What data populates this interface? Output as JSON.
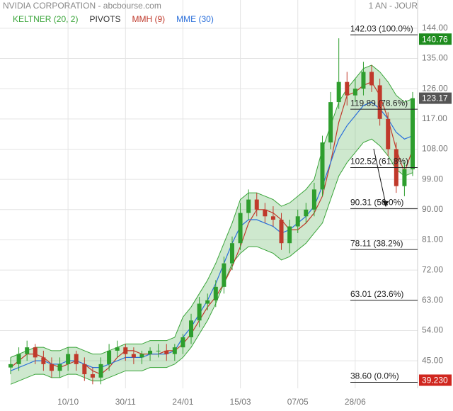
{
  "chart_data": {
    "type": "candlestick",
    "title": "NVIDIA CORPORATION - abcbourse.com",
    "period": "1 AN - JOUR",
    "categories": [
      null,
      null,
      null,
      null,
      null,
      null,
      null,
      "10/10",
      null,
      null,
      null,
      null,
      null,
      null,
      "30/11",
      null,
      null,
      null,
      null,
      null,
      null,
      "24/01",
      null,
      null,
      null,
      null,
      null,
      null,
      "15/03",
      null,
      null,
      null,
      null,
      null,
      null,
      "07/05",
      null,
      null,
      null,
      null,
      null,
      null,
      "28/06",
      null,
      null,
      null,
      null,
      null,
      null,
      null
    ],
    "open": [
      43,
      44,
      47,
      49,
      46,
      44,
      42,
      44,
      47,
      44,
      41,
      40,
      44,
      48,
      49,
      47,
      46,
      47,
      48,
      48,
      47,
      49,
      52,
      57,
      62,
      63,
      67,
      74,
      80,
      89,
      93,
      90,
      88,
      87,
      80,
      85,
      88,
      90,
      96,
      110,
      122,
      128,
      124,
      126,
      131,
      127,
      117,
      108,
      97,
      102
    ],
    "high": [
      46,
      49,
      51,
      50,
      48,
      46,
      46,
      49,
      48,
      46,
      43,
      46,
      50,
      51,
      50,
      49,
      48,
      49,
      50,
      50,
      50,
      53,
      59,
      64,
      65,
      69,
      76,
      82,
      92,
      96,
      95,
      92,
      91,
      89,
      87,
      90,
      92,
      98,
      112,
      125,
      141,
      131,
      129,
      134,
      133,
      129,
      119,
      110,
      104,
      125
    ],
    "low": [
      41,
      42,
      45,
      44,
      42,
      40,
      40,
      42,
      42,
      39,
      38,
      38,
      42,
      46,
      45,
      44,
      44,
      45,
      46,
      45,
      45,
      47,
      50,
      55,
      60,
      61,
      65,
      72,
      78,
      87,
      88,
      86,
      85,
      78,
      77,
      83,
      86,
      88,
      94,
      108,
      120,
      121,
      122,
      124,
      125,
      115,
      106,
      95,
      94,
      100
    ],
    "close": [
      44,
      47,
      49,
      46,
      44,
      42,
      44,
      47,
      44,
      41,
      40,
      44,
      48,
      49,
      47,
      46,
      47,
      48,
      48,
      47,
      49,
      52,
      57,
      62,
      63,
      67,
      74,
      80,
      89,
      93,
      90,
      88,
      87,
      80,
      85,
      88,
      90,
      96,
      110,
      122,
      128,
      124,
      126,
      131,
      127,
      117,
      108,
      97,
      102,
      123.17
    ],
    "up_color": "#2e9e2e",
    "down_color": "#c0392b",
    "indicators": [
      {
        "name": "KELTNER (20, 2)",
        "color": "#3aa53a",
        "upper": [
          46,
          47,
          48,
          49,
          49,
          48,
          48,
          49,
          49,
          48,
          47,
          47,
          48,
          49,
          50,
          50,
          50,
          51,
          51,
          51,
          52,
          58,
          61,
          65,
          69,
          74,
          80,
          86,
          93,
          95,
          95,
          94,
          93,
          91,
          92,
          94,
          96,
          99,
          108,
          115,
          122,
          126,
          129,
          132,
          133,
          131,
          128,
          124,
          122,
          123
        ],
        "lower": [
          38,
          39,
          40,
          41,
          41,
          40,
          40,
          41,
          41,
          40,
          39,
          39,
          40,
          41,
          42,
          42,
          42,
          43,
          43,
          43,
          44,
          46,
          49,
          53,
          57,
          62,
          68,
          74,
          77,
          79,
          79,
          78,
          77,
          75,
          76,
          78,
          80,
          83,
          86,
          93,
          100,
          104,
          107,
          110,
          111,
          109,
          106,
          102,
          100,
          101
        ]
      },
      {
        "name": "PIVOTS",
        "color": "#333333"
      },
      {
        "name": "MMH (9)",
        "color": "#c0392b",
        "values": [
          43,
          45,
          47,
          47,
          46,
          44,
          43,
          44,
          45,
          44,
          42,
          41,
          43,
          46,
          48,
          48,
          47,
          47,
          47,
          48,
          48,
          50,
          53,
          57,
          61,
          64,
          68,
          73,
          79,
          86,
          90,
          90,
          89,
          87,
          84,
          84,
          86,
          89,
          94,
          104,
          116,
          124,
          125,
          127,
          128,
          124,
          117,
          108,
          101,
          108
        ]
      },
      {
        "name": "MME (30)",
        "color": "#2a6fdb",
        "values": [
          42,
          43,
          44,
          45,
          45,
          44,
          44,
          45,
          45,
          44,
          43,
          43,
          44,
          45,
          46,
          46,
          46,
          47,
          47,
          47,
          48,
          52,
          55,
          59,
          63,
          68,
          74,
          80,
          85,
          87,
          87,
          86,
          85,
          83,
          84,
          86,
          88,
          91,
          97,
          104,
          111,
          115,
          118,
          121,
          122,
          120,
          117,
          113,
          111,
          112
        ]
      }
    ],
    "fib": [
      {
        "value": 142.03,
        "label": "142.03  (100.0%)"
      },
      {
        "value": 119.89,
        "label": "119.89  (78.6%)"
      },
      {
        "value": 102.52,
        "label": "102.52  (61.8%)"
      },
      {
        "value": 90.31,
        "label": "90.31  (50.0%)"
      },
      {
        "value": 78.11,
        "label": "78.11  (38.2%)"
      },
      {
        "value": 63.01,
        "label": "63.01  (23.6%)"
      },
      {
        "value": 38.6,
        "label": "38.60  (0.0%)"
      }
    ],
    "price_markers": [
      {
        "value": 140.76,
        "color": "#1e8c1e"
      },
      {
        "value": 123.17,
        "color": "#555555"
      },
      {
        "value": 39.23,
        "label": "39.230",
        "color": "#d0271f"
      }
    ],
    "ylim": [
      36.8,
      152.4
    ],
    "yticks": [
      {
        "value": 45,
        "label": "45.00"
      },
      {
        "value": 54,
        "label": "54.00"
      },
      {
        "value": 63,
        "label": "63.00"
      },
      {
        "value": 72,
        "label": "72.00"
      },
      {
        "value": 81,
        "label": "81.00"
      },
      {
        "value": 90,
        "label": "90.00"
      },
      {
        "value": 99,
        "label": "99.00"
      },
      {
        "value": 108,
        "label": "108.00"
      },
      {
        "value": 117,
        "label": "117.00"
      },
      {
        "value": 126,
        "label": "126.00"
      },
      {
        "value": 135,
        "label": "135.00"
      },
      {
        "value": 144,
        "label": "144.00"
      }
    ],
    "grid": true
  }
}
